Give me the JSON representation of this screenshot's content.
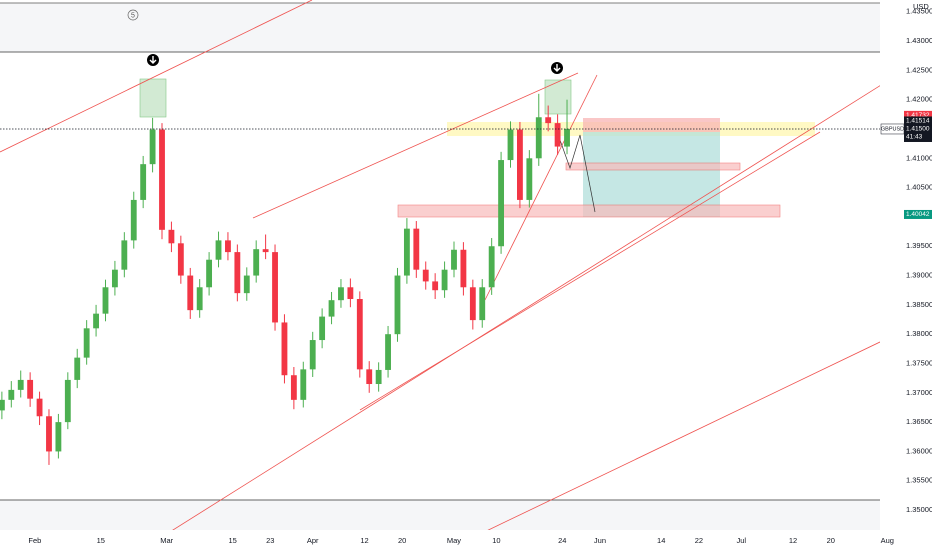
{
  "chart_data": {
    "type": "candlestick",
    "currency": "USD",
    "symbol": "GBPUSD",
    "countdown": "41:43",
    "marker": "5",
    "up_color": "#4caf50",
    "down_color": "#f23645",
    "x": [
      -7,
      -5,
      -3,
      -1,
      1,
      3,
      5,
      7,
      9,
      11,
      13,
      15,
      17,
      19,
      21,
      23,
      25,
      27,
      29,
      31,
      33,
      35,
      37,
      39,
      41,
      43,
      45,
      47,
      49,
      51,
      53,
      55,
      57,
      59,
      61,
      63,
      65,
      67,
      69,
      71,
      73,
      75,
      77,
      79,
      81,
      83,
      85,
      87,
      89,
      91,
      93,
      95,
      97,
      99,
      101,
      103,
      105,
      107,
      109,
      111,
      113
    ],
    "open": [
      1.367,
      1.3688,
      1.3705,
      1.3722,
      1.369,
      1.366,
      1.36,
      1.365,
      1.3722,
      1.376,
      1.381,
      1.3835,
      1.388,
      1.391,
      1.396,
      1.4029,
      1.409,
      1.4149,
      1.3978,
      1.3955,
      1.39,
      1.3841,
      1.388,
      1.3927,
      1.396,
      1.394,
      1.387,
      1.39,
      1.3945,
      1.394,
      1.382,
      1.373,
      1.3688,
      1.374,
      1.379,
      1.383,
      1.3858,
      1.388,
      1.386,
      1.374,
      1.3715,
      1.3739,
      1.38,
      1.39,
      1.398,
      1.391,
      1.389,
      1.3875,
      1.391,
      1.3944,
      1.388,
      1.3824,
      1.388,
      1.395,
      1.4097,
      1.4149,
      1.4029,
      1.41,
      1.417,
      1.416,
      1.412
    ],
    "high": [
      1.3702,
      1.372,
      1.3738,
      1.3735,
      1.3702,
      1.3672,
      1.3664,
      1.3735,
      1.3775,
      1.3824,
      1.385,
      1.3893,
      1.3925,
      1.3974,
      1.4043,
      1.4104,
      1.4169,
      1.416,
      1.3992,
      1.3968,
      1.3913,
      1.3894,
      1.394,
      1.3975,
      1.3974,
      1.3953,
      1.3914,
      1.396,
      1.397,
      1.3953,
      1.3834,
      1.3744,
      1.3753,
      1.3804,
      1.3844,
      1.3872,
      1.3894,
      1.3895,
      1.3873,
      1.3754,
      1.3752,
      1.3814,
      1.3913,
      1.3998,
      1.3993,
      1.3924,
      1.3904,
      1.3924,
      1.3958,
      1.3957,
      1.3893,
      1.3894,
      1.3964,
      1.4111,
      1.4163,
      1.4162,
      1.4114,
      1.421,
      1.419,
      1.4175,
      1.42
    ],
    "low": [
      1.3655,
      1.3675,
      1.3692,
      1.3676,
      1.3645,
      1.3577,
      1.3588,
      1.3638,
      1.3708,
      1.3748,
      1.3796,
      1.3822,
      1.3866,
      1.3897,
      1.3946,
      1.4015,
      1.4076,
      1.3962,
      1.394,
      1.3886,
      1.3826,
      1.3828,
      1.3866,
      1.3914,
      1.3926,
      1.3856,
      1.3857,
      1.3888,
      1.3928,
      1.3806,
      1.3716,
      1.3672,
      1.3675,
      1.3727,
      1.3776,
      1.3817,
      1.3845,
      1.3846,
      1.3726,
      1.37,
      1.3702,
      1.3726,
      1.3787,
      1.3886,
      1.3896,
      1.3876,
      1.386,
      1.3862,
      1.3897,
      1.3866,
      1.3808,
      1.3811,
      1.3867,
      1.3937,
      1.4084,
      1.4015,
      1.4016,
      1.4087,
      1.4146,
      1.4106,
      1.4107
    ],
    "close": [
      1.3688,
      1.3705,
      1.3722,
      1.369,
      1.366,
      1.36,
      1.365,
      1.3722,
      1.376,
      1.381,
      1.3835,
      1.388,
      1.391,
      1.396,
      1.4029,
      1.409,
      1.4149,
      1.3978,
      1.3955,
      1.39,
      1.3841,
      1.388,
      1.3927,
      1.396,
      1.394,
      1.387,
      1.39,
      1.3945,
      1.394,
      1.382,
      1.373,
      1.3688,
      1.374,
      1.379,
      1.383,
      1.3858,
      1.388,
      1.386,
      1.374,
      1.3715,
      1.3739,
      1.38,
      1.39,
      1.398,
      1.391,
      1.389,
      1.3875,
      1.391,
      1.3944,
      1.388,
      1.3824,
      1.388,
      1.395,
      1.4097,
      1.4149,
      1.4029,
      1.41,
      1.417,
      1.416,
      1.412,
      1.415
    ],
    "xlim": [
      -7.4,
      190.5
    ],
    "ylim": [
      1.3466,
      1.437
    ],
    "xticks": [
      {
        "value": 0,
        "label": "Feb"
      },
      {
        "value": 14,
        "label": "15"
      },
      {
        "value": 28,
        "label": "Mar"
      },
      {
        "value": 42,
        "label": "15"
      },
      {
        "value": 50,
        "label": "23"
      },
      {
        "value": 59,
        "label": "Apr"
      },
      {
        "value": 70,
        "label": "12"
      },
      {
        "value": 78,
        "label": "20"
      },
      {
        "value": 89,
        "label": "May"
      },
      {
        "value": 98,
        "label": "10"
      },
      {
        "value": 112,
        "label": "24"
      },
      {
        "value": 120,
        "label": "Jun"
      },
      {
        "value": 133,
        "label": "14"
      },
      {
        "value": 141,
        "label": "22"
      },
      {
        "value": 150,
        "label": "Jul"
      },
      {
        "value": 161,
        "label": "12"
      },
      {
        "value": 169,
        "label": "20"
      },
      {
        "value": 181,
        "label": "Aug"
      }
    ],
    "yticks": [
      {
        "value": 1.35,
        "label": "1.35000"
      },
      {
        "value": 1.355,
        "label": "1.35500"
      },
      {
        "value": 1.36,
        "label": "1.36000"
      },
      {
        "value": 1.365,
        "label": "1.36500"
      },
      {
        "value": 1.37,
        "label": "1.37000"
      },
      {
        "value": 1.375,
        "label": "1.37500"
      },
      {
        "value": 1.38,
        "label": "1.38000"
      },
      {
        "value": 1.385,
        "label": "1.38500"
      },
      {
        "value": 1.39,
        "label": "1.39000"
      },
      {
        "value": 1.395,
        "label": "1.39500"
      },
      {
        "value": 1.405,
        "label": "1.40500"
      },
      {
        "value": 1.41,
        "label": "1.41000"
      },
      {
        "value": 1.42,
        "label": "1.42000"
      },
      {
        "value": 1.425,
        "label": "1.42500"
      },
      {
        "value": 1.43,
        "label": "1.43000"
      },
      {
        "value": 1.435,
        "label": "1.43500"
      }
    ],
    "last_price": {
      "value": 1.415,
      "label": "1.41500"
    },
    "last_price_color": "#131722",
    "price_labels": [
      {
        "value": 1.41732,
        "label": "1.41732"
      },
      {
        "value": 1.41514,
        "label": "1.41514"
      },
      {
        "value": 1.40042,
        "label": "1.40042"
      }
    ],
    "price_label_colors": [
      "#f23645",
      "#131722",
      "#089981"
    ]
  }
}
